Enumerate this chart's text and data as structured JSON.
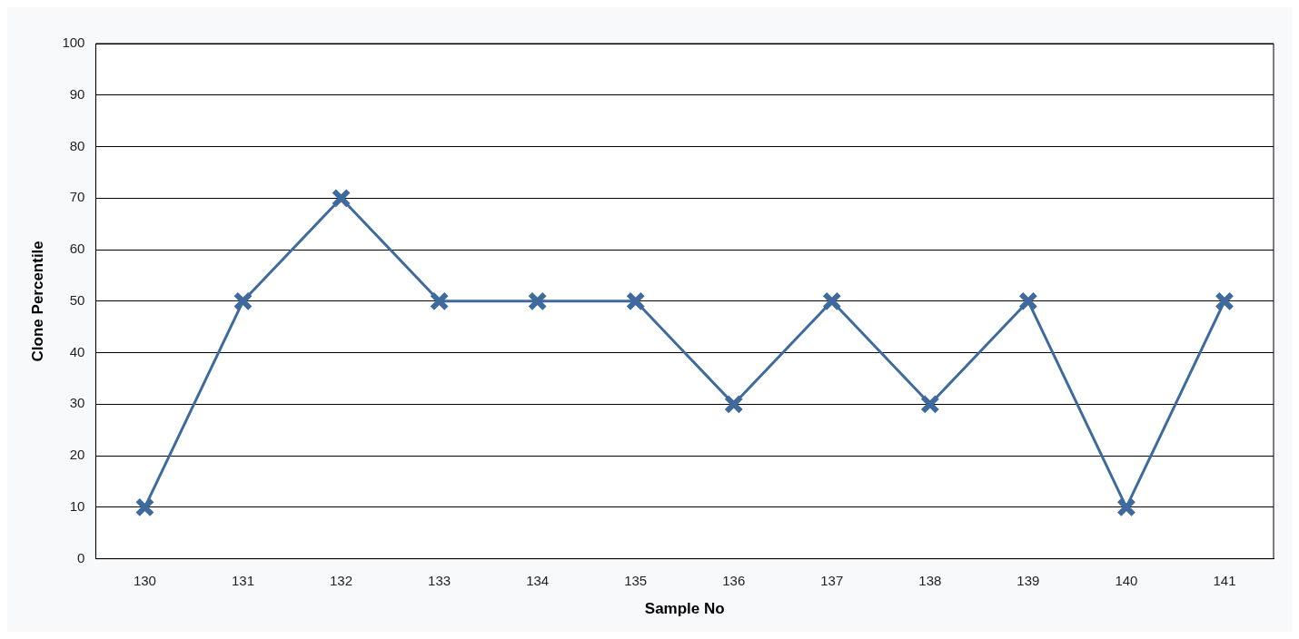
{
  "chart_data": {
    "type": "line",
    "xlabel": "Sample No",
    "ylabel": "Clone Percentile",
    "categories": [
      "130",
      "131",
      "132",
      "133",
      "134",
      "135",
      "136",
      "137",
      "138",
      "139",
      "140",
      "141"
    ],
    "series": [
      {
        "color": "#3e6a9e",
        "values": [
          10,
          50,
          70,
          50,
          50,
          50,
          30,
          50,
          30,
          50,
          10,
          50
        ]
      }
    ],
    "ylim": [
      0,
      100
    ],
    "yticks": [
      0,
      10,
      20,
      30,
      40,
      50,
      60,
      70,
      80,
      90,
      100
    ],
    "grid": "y",
    "legend": false,
    "marker": "cross",
    "line_style": "solid"
  }
}
